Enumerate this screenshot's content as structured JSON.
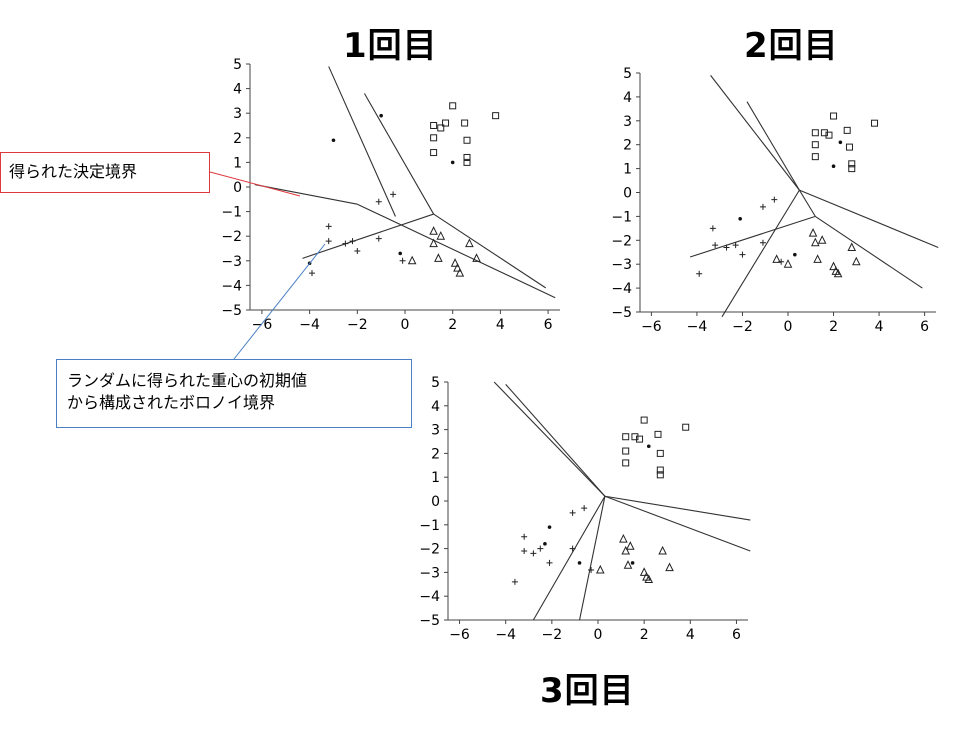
{
  "iterations": [
    {
      "title": "1回目"
    },
    {
      "title": "2回目"
    },
    {
      "title": "3回目"
    }
  ],
  "callouts": {
    "decision_boundary": "得られた決定境界",
    "voronoi": "ランダムに得られた重心の初期値\nから構成されたボロノイ境界"
  },
  "colors": {
    "callout_red": "#e0383e",
    "callout_blue": "#4a7fc4",
    "axis": "#444444",
    "lines": "#333333"
  },
  "chart_data": [
    {
      "type": "scatter",
      "title": "1回目",
      "xlim": [
        -6.5,
        6.5
      ],
      "ylim": [
        -5,
        5
      ],
      "xticks": [
        -6,
        -4,
        -2,
        0,
        2,
        4,
        6
      ],
      "yticks": [
        -5,
        -4,
        -3,
        -2,
        -1,
        0,
        1,
        2,
        3,
        4,
        5
      ],
      "series": [
        {
          "marker": "square",
          "points": [
            [
              2.0,
              3.3
            ],
            [
              1.7,
              2.6
            ],
            [
              1.2,
              2.5
            ],
            [
              1.5,
              2.4
            ],
            [
              2.5,
              2.6
            ],
            [
              3.8,
              2.9
            ],
            [
              1.2,
              2.0
            ],
            [
              2.6,
              1.9
            ],
            [
              1.2,
              1.4
            ],
            [
              2.6,
              1.2
            ],
            [
              2.6,
              1.0
            ]
          ]
        },
        {
          "marker": "triangle",
          "points": [
            [
              1.2,
              -1.8
            ],
            [
              1.2,
              -2.3
            ],
            [
              1.5,
              -2.0
            ],
            [
              1.4,
              -2.9
            ],
            [
              2.7,
              -2.3
            ],
            [
              2.1,
              -3.1
            ],
            [
              2.2,
              -3.3
            ],
            [
              2.3,
              -3.5
            ],
            [
              3.0,
              -2.9
            ],
            [
              0.3,
              -3.0
            ]
          ]
        },
        {
          "marker": "plus",
          "points": [
            [
              -3.2,
              -1.6
            ],
            [
              -3.2,
              -2.2
            ],
            [
              -2.5,
              -2.3
            ],
            [
              -2.2,
              -2.2
            ],
            [
              -2.0,
              -2.6
            ],
            [
              -1.1,
              -2.1
            ],
            [
              -1.1,
              -0.6
            ],
            [
              -0.5,
              -0.3
            ],
            [
              -3.9,
              -3.5
            ],
            [
              -0.1,
              -3.0
            ]
          ]
        },
        {
          "marker": "centroid",
          "points": [
            [
              -3.0,
              1.9
            ],
            [
              -1.0,
              2.9
            ],
            [
              2.0,
              1.0
            ],
            [
              -0.2,
              -2.7
            ],
            [
              -4.0,
              -3.1
            ]
          ]
        }
      ],
      "lines": [
        [
          [
            -3.2,
            4.9
          ],
          [
            -0.4,
            -1.2
          ]
        ],
        [
          [
            -1.7,
            3.8
          ],
          [
            1.2,
            -1.1
          ]
        ],
        [
          [
            -6.3,
            0.1
          ],
          [
            -2.0,
            -0.7
          ]
        ],
        [
          [
            -4.3,
            -2.9
          ],
          [
            1.2,
            -1.1
          ]
        ],
        [
          [
            -2.0,
            -0.7
          ],
          [
            6.3,
            -4.5
          ]
        ],
        [
          [
            1.2,
            -1.1
          ],
          [
            5.9,
            -4.1
          ]
        ]
      ]
    },
    {
      "type": "scatter",
      "title": "2回目",
      "xlim": [
        -6.5,
        6.5
      ],
      "ylim": [
        -5,
        5
      ],
      "xticks": [
        -6,
        -4,
        -2,
        0,
        2,
        4,
        6
      ],
      "yticks": [
        -5,
        -4,
        -3,
        -2,
        -1,
        0,
        1,
        2,
        3,
        4,
        5
      ],
      "series": [
        {
          "marker": "square",
          "points": [
            [
              2.0,
              3.2
            ],
            [
              1.6,
              2.5
            ],
            [
              1.2,
              2.5
            ],
            [
              1.8,
              2.4
            ],
            [
              2.6,
              2.6
            ],
            [
              3.8,
              2.9
            ],
            [
              1.2,
              2.0
            ],
            [
              2.7,
              1.9
            ],
            [
              1.2,
              1.5
            ],
            [
              2.8,
              1.2
            ],
            [
              2.8,
              1.0
            ]
          ]
        },
        {
          "marker": "triangle",
          "points": [
            [
              1.1,
              -1.7
            ],
            [
              1.2,
              -2.1
            ],
            [
              1.5,
              -2.0
            ],
            [
              1.3,
              -2.8
            ],
            [
              2.8,
              -2.3
            ],
            [
              2.0,
              -3.1
            ],
            [
              2.1,
              -3.3
            ],
            [
              2.2,
              -3.4
            ],
            [
              3.0,
              -2.9
            ],
            [
              0.0,
              -3.0
            ],
            [
              -0.5,
              -2.8
            ]
          ]
        },
        {
          "marker": "plus",
          "points": [
            [
              -3.3,
              -1.5
            ],
            [
              -3.2,
              -2.2
            ],
            [
              -2.7,
              -2.3
            ],
            [
              -2.3,
              -2.2
            ],
            [
              -2.0,
              -2.6
            ],
            [
              -1.1,
              -2.1
            ],
            [
              -1.1,
              -0.6
            ],
            [
              -0.6,
              -0.3
            ],
            [
              -3.9,
              -3.4
            ],
            [
              -0.3,
              -2.9
            ]
          ]
        },
        {
          "marker": "centroid",
          "points": [
            [
              -2.1,
              -1.1
            ],
            [
              2.3,
              2.1
            ],
            [
              2.0,
              1.1
            ],
            [
              0.3,
              -2.6
            ]
          ]
        }
      ],
      "lines": [
        [
          [
            -3.4,
            4.9
          ],
          [
            0.5,
            0.1
          ]
        ],
        [
          [
            -1.8,
            3.8
          ],
          [
            0.5,
            0.1
          ]
        ],
        [
          [
            0.5,
            0.1
          ],
          [
            6.6,
            -2.3
          ]
        ],
        [
          [
            0.5,
            0.1
          ],
          [
            -2.9,
            -5.2
          ]
        ],
        [
          [
            1.2,
            -1.0
          ],
          [
            -4.3,
            -2.7
          ]
        ],
        [
          [
            1.2,
            -1.0
          ],
          [
            5.9,
            -4.0
          ]
        ],
        [
          [
            0.5,
            0.1
          ],
          [
            1.2,
            -1.0
          ]
        ]
      ]
    },
    {
      "type": "scatter",
      "title": "3回目",
      "xlim": [
        -6.5,
        6.5
      ],
      "ylim": [
        -5,
        5
      ],
      "xticks": [
        -6,
        -4,
        -2,
        0,
        2,
        4,
        6
      ],
      "yticks": [
        -5,
        -4,
        -3,
        -2,
        -1,
        0,
        1,
        2,
        3,
        4,
        5
      ],
      "series": [
        {
          "marker": "square",
          "points": [
            [
              2.0,
              3.4
            ],
            [
              1.6,
              2.7
            ],
            [
              1.2,
              2.7
            ],
            [
              1.8,
              2.6
            ],
            [
              2.6,
              2.8
            ],
            [
              3.8,
              3.1
            ],
            [
              1.2,
              2.1
            ],
            [
              2.7,
              2.0
            ],
            [
              1.2,
              1.6
            ],
            [
              2.7,
              1.3
            ],
            [
              2.7,
              1.1
            ]
          ]
        },
        {
          "marker": "triangle",
          "points": [
            [
              1.1,
              -1.6
            ],
            [
              1.2,
              -2.1
            ],
            [
              1.4,
              -1.9
            ],
            [
              1.3,
              -2.7
            ],
            [
              2.8,
              -2.1
            ],
            [
              2.0,
              -3.0
            ],
            [
              2.1,
              -3.2
            ],
            [
              2.2,
              -3.3
            ],
            [
              3.1,
              -2.8
            ],
            [
              0.1,
              -2.9
            ]
          ]
        },
        {
          "marker": "plus",
          "points": [
            [
              -3.2,
              -1.5
            ],
            [
              -3.2,
              -2.1
            ],
            [
              -2.8,
              -2.2
            ],
            [
              -2.5,
              -2.0
            ],
            [
              -2.1,
              -2.6
            ],
            [
              -1.1,
              -2.0
            ],
            [
              -1.1,
              -0.5
            ],
            [
              -0.6,
              -0.3
            ],
            [
              -3.6,
              -3.4
            ],
            [
              -0.3,
              -2.9
            ]
          ]
        },
        {
          "marker": "centroid",
          "points": [
            [
              -2.1,
              -1.1
            ],
            [
              -2.3,
              -1.8
            ],
            [
              2.2,
              2.3
            ],
            [
              1.5,
              -2.6
            ],
            [
              -0.8,
              -2.6
            ]
          ]
        }
      ],
      "lines": [
        [
          [
            -4.5,
            5.0
          ],
          [
            0.3,
            0.2
          ]
        ],
        [
          [
            -4.0,
            4.9
          ],
          [
            0.3,
            0.2
          ]
        ],
        [
          [
            0.3,
            0.2
          ],
          [
            6.6,
            -0.8
          ]
        ],
        [
          [
            0.3,
            0.2
          ],
          [
            6.6,
            -2.1
          ]
        ],
        [
          [
            0.3,
            0.2
          ],
          [
            -2.8,
            -5.0
          ]
        ],
        [
          [
            0.3,
            0.2
          ],
          [
            -0.8,
            -5.0
          ]
        ]
      ]
    }
  ]
}
